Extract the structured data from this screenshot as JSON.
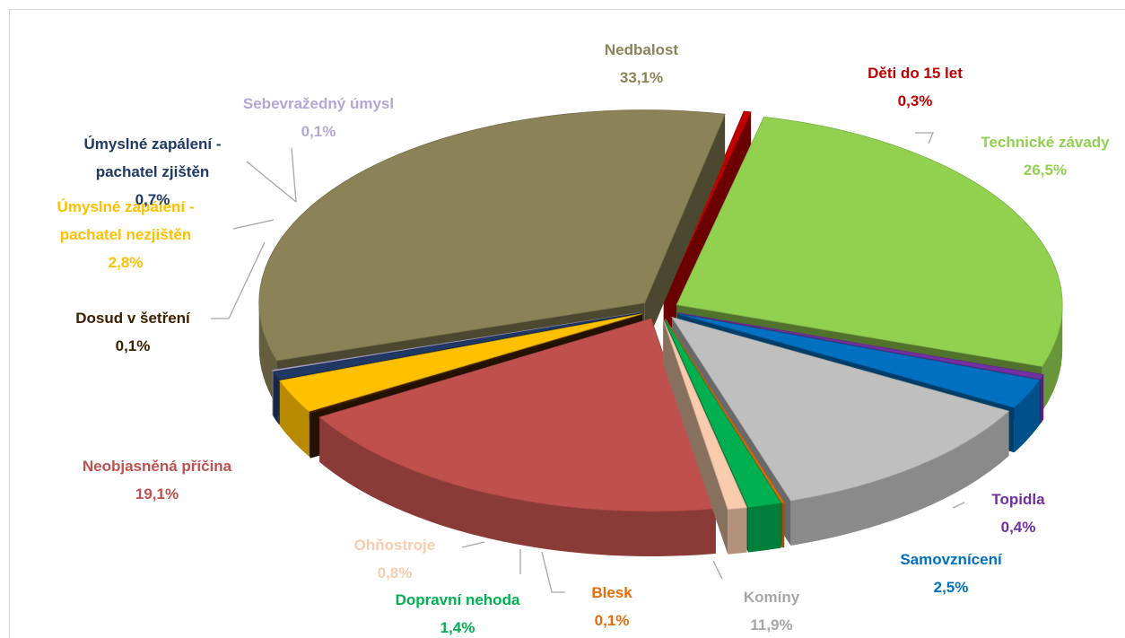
{
  "chart_data": {
    "type": "pie3d",
    "categories": [
      "Děti do 15 let",
      "Technické závady",
      "Topidla",
      "Samovznícení",
      "Komíny",
      "Blesk",
      "Dopravní nehoda",
      "Ohňostroje",
      "Neobjasněná příčina",
      "Dosud v šetření",
      "Úmyslné zapálení - pachatel nezjištěn",
      "Úmyslné zapálení - pachatel zjištěn",
      "Sebevražedný úmysl",
      "Nedbalost"
    ],
    "values": [
      0.3,
      26.5,
      0.4,
      2.5,
      11.9,
      0.1,
      1.4,
      0.8,
      19.1,
      0.1,
      2.8,
      0.7,
      0.1,
      33.1
    ],
    "value_labels": [
      "0,3%",
      "26,5%",
      "0,4%",
      "2,5%",
      "11,9%",
      "0,1%",
      "1,4%",
      "0,8%",
      "19,1%",
      "0,1%",
      "2,8%",
      "0,7%",
      "0,1%",
      "33,1%"
    ],
    "colors": [
      "#c00000",
      "#92d050",
      "#7030a0",
      "#0070c0",
      "#bfbfbf",
      "#e46c0a",
      "#00b050",
      "#f8cbad",
      "#c0504d",
      "#3f2000",
      "#ffc000",
      "#1f3864",
      "#b4a7d6",
      "#8b8257"
    ]
  }
}
